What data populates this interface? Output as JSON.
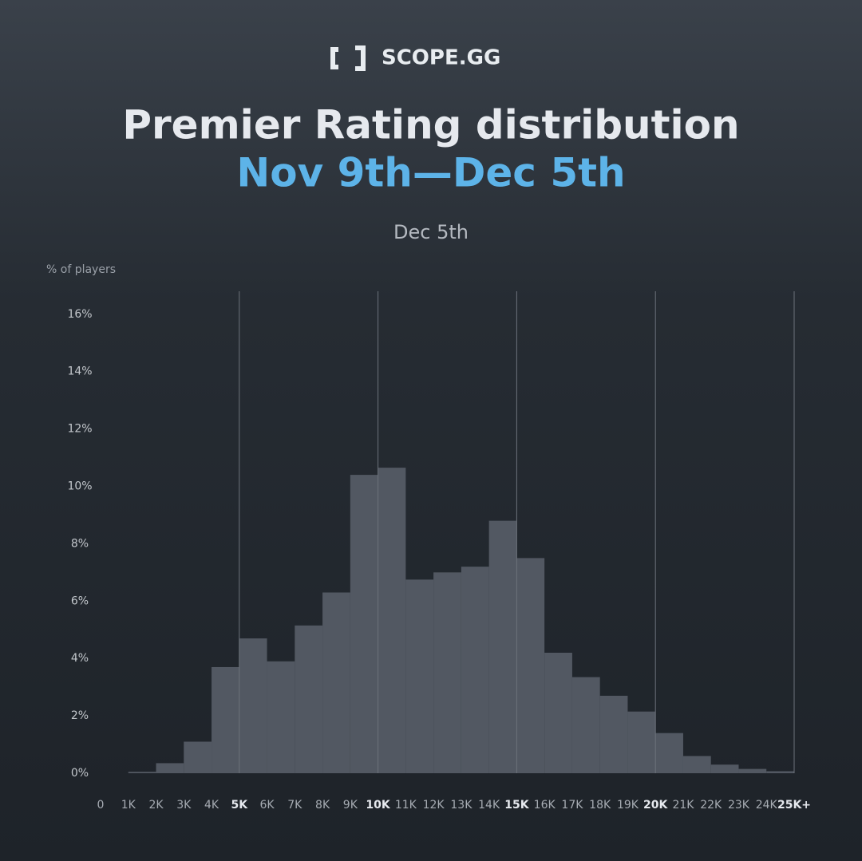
{
  "brand": "SCOPE.GG",
  "chart_data": {
    "type": "histogram",
    "title": "Premier Rating distribution",
    "subtitle": "Nov 9th—Dec 5th",
    "caption": "Dec 5th",
    "y_label": "% of players",
    "bins": [
      1000,
      2000,
      3000,
      4000,
      5000,
      6000,
      7000,
      8000,
      9000,
      10000,
      11000,
      12000,
      13000,
      14000,
      15000,
      16000,
      17000,
      18000,
      19000,
      20000,
      21000,
      22000,
      23000,
      24000,
      25000
    ],
    "values": [
      0.05,
      0.35,
      1.1,
      3.7,
      4.7,
      3.9,
      5.15,
      6.3,
      10.4,
      10.65,
      6.75,
      7.0,
      7.2,
      8.8,
      7.5,
      4.2,
      3.35,
      2.7,
      2.15,
      1.4,
      0.6,
      0.3,
      0.15,
      0.07
    ],
    "color": "#525862",
    "xlim": [
      0,
      25000
    ],
    "xticks": [
      {
        "value": 0,
        "label": "0"
      },
      {
        "value": 1000,
        "label": "1K"
      },
      {
        "value": 2000,
        "label": "2K"
      },
      {
        "value": 3000,
        "label": "3K"
      },
      {
        "value": 4000,
        "label": "4K"
      },
      {
        "value": 5000,
        "label": "5K"
      },
      {
        "value": 6000,
        "label": "6K"
      },
      {
        "value": 7000,
        "label": "7K"
      },
      {
        "value": 8000,
        "label": "8K"
      },
      {
        "value": 9000,
        "label": "9K"
      },
      {
        "value": 10000,
        "label": "10K"
      },
      {
        "value": 11000,
        "label": "11K"
      },
      {
        "value": 12000,
        "label": "12K"
      },
      {
        "value": 13000,
        "label": "13K"
      },
      {
        "value": 14000,
        "label": "14K"
      },
      {
        "value": 15000,
        "label": "15K"
      },
      {
        "value": 16000,
        "label": "16K"
      },
      {
        "value": 17000,
        "label": "17K"
      },
      {
        "value": 18000,
        "label": "18K"
      },
      {
        "value": 19000,
        "label": "19K"
      },
      {
        "value": 20000,
        "label": "20K"
      },
      {
        "value": 21000,
        "label": "21K"
      },
      {
        "value": 22000,
        "label": "22K"
      },
      {
        "value": 23000,
        "label": "23K"
      },
      {
        "value": 24000,
        "label": "24K"
      },
      {
        "value": 25000,
        "label": "25K+"
      }
    ],
    "xgrid": [
      5000,
      10000,
      15000,
      20000,
      25000
    ],
    "ylim": [
      0,
      16.8
    ],
    "yticks": [
      {
        "value": 0,
        "label": "0%"
      },
      {
        "value": 2,
        "label": "2%"
      },
      {
        "value": 4,
        "label": "4%"
      },
      {
        "value": 6,
        "label": "6%"
      },
      {
        "value": 8,
        "label": "8%"
      },
      {
        "value": 10,
        "label": "10%"
      },
      {
        "value": 12,
        "label": "12%"
      },
      {
        "value": 14,
        "label": "14%"
      },
      {
        "value": 16,
        "label": "16%"
      }
    ]
  }
}
